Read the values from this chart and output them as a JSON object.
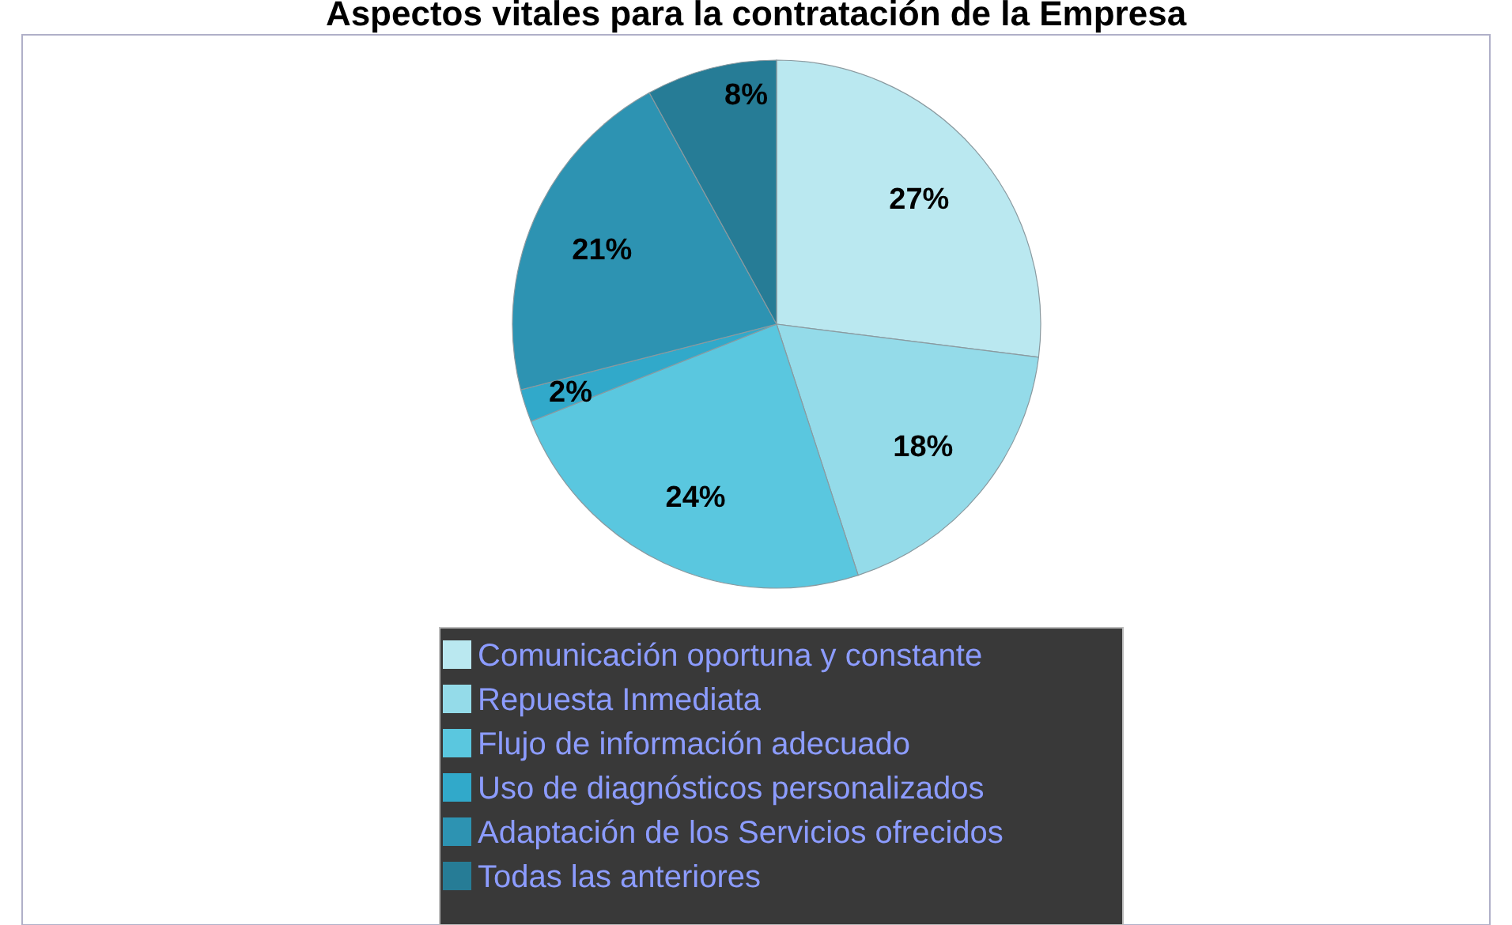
{
  "chart_data": {
    "type": "pie",
    "title": "Aspectos vitales para la contratación de la Empresa",
    "categories": [
      "Comunicación oportuna y constante",
      "Repuesta Inmediata",
      "Flujo de información adecuado",
      "Uso de diagnósticos personalizados",
      "Adaptación de los Servicios ofrecidos",
      "Todas las anteriores"
    ],
    "values": [
      27,
      18,
      24,
      2,
      21,
      8
    ],
    "colors": [
      "#bae8f0",
      "#94dbe9",
      "#5ac7df",
      "#31a9ca",
      "#2d93b2",
      "#267c96"
    ],
    "value_labels": [
      "27%",
      "18%",
      "24%",
      "2%",
      "21%",
      "8%"
    ],
    "legend": "bottom"
  }
}
